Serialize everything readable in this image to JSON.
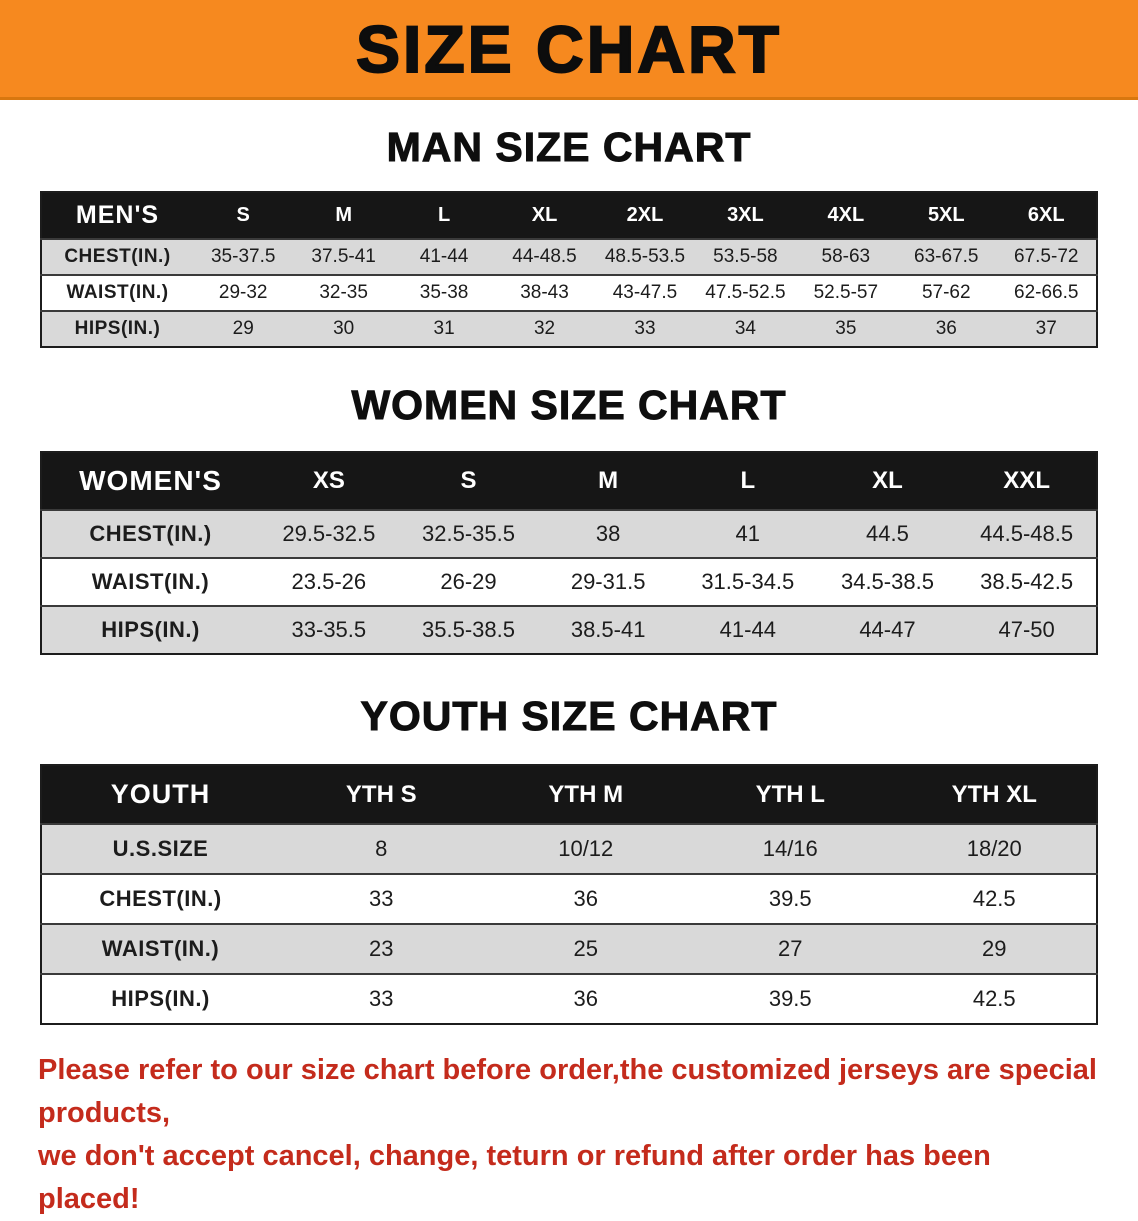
{
  "banner": {
    "title": "SIZE CHART"
  },
  "sections": [
    {
      "id": "men",
      "heading": "MAN SIZE CHART",
      "table": {
        "header": [
          "MEN'S",
          "S",
          "M",
          "L",
          "XL",
          "2XL",
          "3XL",
          "4XL",
          "5XL",
          "6XL"
        ],
        "rows": [
          [
            "CHEST(IN.)",
            "35-37.5",
            "37.5-41",
            "41-44",
            "44-48.5",
            "48.5-53.5",
            "53.5-58",
            "58-63",
            "63-67.5",
            "67.5-72"
          ],
          [
            "WAIST(IN.)",
            "29-32",
            "32-35",
            "35-38",
            "38-43",
            "43-47.5",
            "47.5-52.5",
            "52.5-57",
            "57-62",
            "62-66.5"
          ],
          [
            "HIPS(IN.)",
            "29",
            "30",
            "31",
            "32",
            "33",
            "34",
            "35",
            "36",
            "37"
          ]
        ]
      }
    },
    {
      "id": "women",
      "heading": "WOMEN SIZE CHART",
      "table": {
        "header": [
          "WOMEN'S",
          "XS",
          "S",
          "M",
          "L",
          "XL",
          "XXL"
        ],
        "rows": [
          [
            "CHEST(IN.)",
            "29.5-32.5",
            "32.5-35.5",
            "38",
            "41",
            "44.5",
            "44.5-48.5"
          ],
          [
            "WAIST(IN.)",
            "23.5-26",
            "26-29",
            "29-31.5",
            "31.5-34.5",
            "34.5-38.5",
            "38.5-42.5"
          ],
          [
            "HIPS(IN.)",
            "33-35.5",
            "35.5-38.5",
            "38.5-41",
            "41-44",
            "44-47",
            "47-50"
          ]
        ]
      }
    },
    {
      "id": "youth",
      "heading": "YOUTH SIZE CHART",
      "table": {
        "header": [
          "YOUTH",
          "YTH S",
          "YTH M",
          "YTH L",
          "YTH XL"
        ],
        "rows": [
          [
            "U.S.SIZE",
            "8",
            "10/12",
            "14/16",
            "18/20"
          ],
          [
            "CHEST(IN.)",
            "33",
            "36",
            "39.5",
            "42.5"
          ],
          [
            "WAIST(IN.)",
            "23",
            "25",
            "27",
            "29"
          ],
          [
            "HIPS(IN.)",
            "33",
            "36",
            "39.5",
            "42.5"
          ]
        ]
      }
    }
  ],
  "disclaimer": {
    "line1": "Please refer to our size chart before order,the customized jerseys are special products,",
    "line2": "we don't accept cancel, change, teturn or refund after order has been placed!"
  },
  "colors": {
    "banner_orange": "#f6891f",
    "header_black": "#161616",
    "row_gray": "#d9d9d9",
    "disclaimer_red": "#c42b1c"
  }
}
